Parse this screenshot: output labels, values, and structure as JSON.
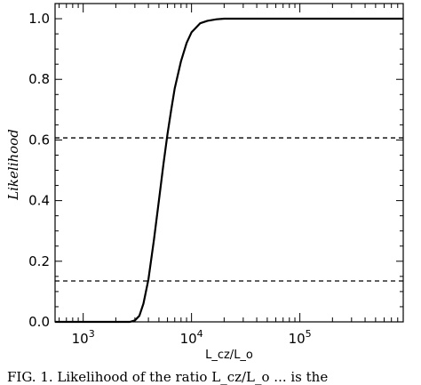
{
  "chart_data": {
    "type": "line",
    "xlabel": "L_cz/L_o",
    "ylabel": "Likelihood",
    "x_scale": "log",
    "xlim": [
      550,
      900000
    ],
    "ylim": [
      0,
      1.05
    ],
    "x_ticks": [
      {
        "value": 1000,
        "base": "10",
        "exp": "3"
      },
      {
        "value": 10000,
        "base": "10",
        "exp": "4"
      },
      {
        "value": 100000,
        "base": "10",
        "exp": "5"
      }
    ],
    "y_ticks": [
      "0.0",
      "0.2",
      "0.4",
      "0.6",
      "0.8",
      "1.0"
    ],
    "series": [
      {
        "style": "solid",
        "x": [
          550,
          1000,
          2000,
          2700,
          3000,
          3300,
          3600,
          4000,
          4500,
          5000,
          5500,
          6000,
          6500,
          7000,
          8000,
          9000,
          10000,
          12000,
          14000,
          17000,
          20000,
          30000,
          50000,
          100000,
          900000
        ],
        "y": [
          0.0,
          0.0,
          0.0,
          0.0,
          0.005,
          0.02,
          0.06,
          0.14,
          0.27,
          0.4,
          0.52,
          0.62,
          0.7,
          0.77,
          0.86,
          0.92,
          0.955,
          0.985,
          0.993,
          0.998,
          1.0,
          1.0,
          1.0,
          1.0,
          1.0
        ]
      }
    ],
    "reference_lines": [
      {
        "orientation": "horizontal",
        "y": 0.607,
        "style": "dashed"
      },
      {
        "orientation": "horizontal",
        "y": 0.135,
        "style": "dashed"
      }
    ],
    "grid": false
  },
  "caption": {
    "text": "FIG. 1. Likelihood of the ratio L_cz/L_o ... is the"
  }
}
